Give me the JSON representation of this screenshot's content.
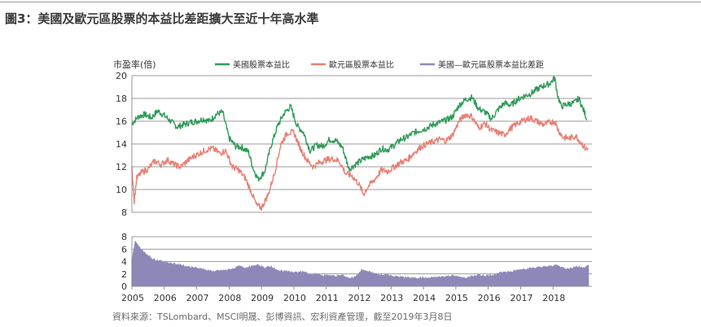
{
  "title": "圖3：美國及歐元區股票的本益比差距擴大至近十年高水準",
  "source": "資料來源：TSLombard、MSCI明晟、彭博資訊、宏利資產管理，截至2019年3月8日",
  "colors": {
    "us": "#2e9a57",
    "euro": "#e77f74",
    "spread": "#8d88b8",
    "grid": "#7a7a7a"
  },
  "chart_data": [
    {
      "type": "line",
      "ylabel": "市盈率(倍)",
      "ylim": [
        8,
        20
      ],
      "yticks": [
        "8",
        "10",
        "12",
        "14",
        "16",
        "18",
        "20"
      ],
      "x_ticks": [
        "2005",
        "2006",
        "2007",
        "2008",
        "2009",
        "2010",
        "2011",
        "2012",
        "2013",
        "2014",
        "2015",
        "2016",
        "2017",
        "2018"
      ],
      "legend_position": "top",
      "series": [
        {
          "name": "美國股票本益比",
          "color": "#2e9a57",
          "points": [
            [
              2005.0,
              15.8
            ],
            [
              2005.2,
              16.4
            ],
            [
              2005.4,
              16.6
            ],
            [
              2005.6,
              16.3
            ],
            [
              2005.8,
              16.9
            ],
            [
              2006.0,
              16.5
            ],
            [
              2006.2,
              16.0
            ],
            [
              2006.4,
              15.5
            ],
            [
              2006.6,
              15.7
            ],
            [
              2006.8,
              15.9
            ],
            [
              2007.0,
              16.0
            ],
            [
              2007.2,
              16.2
            ],
            [
              2007.4,
              16.0
            ],
            [
              2007.6,
              16.6
            ],
            [
              2007.8,
              16.8
            ],
            [
              2008.0,
              14.5
            ],
            [
              2008.2,
              13.8
            ],
            [
              2008.4,
              13.7
            ],
            [
              2008.6,
              13.3
            ],
            [
              2008.75,
              11.8
            ],
            [
              2008.9,
              10.9
            ],
            [
              2009.1,
              11.6
            ],
            [
              2009.3,
              13.9
            ],
            [
              2009.5,
              15.6
            ],
            [
              2009.7,
              16.7
            ],
            [
              2009.9,
              17.3
            ],
            [
              2010.1,
              15.6
            ],
            [
              2010.3,
              15.0
            ],
            [
              2010.5,
              13.4
            ],
            [
              2010.7,
              13.9
            ],
            [
              2010.9,
              13.8
            ],
            [
              2011.1,
              14.4
            ],
            [
              2011.3,
              14.3
            ],
            [
              2011.5,
              13.7
            ],
            [
              2011.7,
              11.8
            ],
            [
              2011.9,
              12.2
            ],
            [
              2012.1,
              12.6
            ],
            [
              2012.3,
              12.9
            ],
            [
              2012.5,
              13.0
            ],
            [
              2012.7,
              13.6
            ],
            [
              2012.9,
              13.5
            ],
            [
              2013.1,
              13.9
            ],
            [
              2013.3,
              14.4
            ],
            [
              2013.5,
              14.6
            ],
            [
              2013.7,
              15.0
            ],
            [
              2013.9,
              15.2
            ],
            [
              2014.1,
              15.4
            ],
            [
              2014.3,
              15.7
            ],
            [
              2014.5,
              15.9
            ],
            [
              2014.7,
              16.1
            ],
            [
              2014.9,
              16.4
            ],
            [
              2015.1,
              17.4
            ],
            [
              2015.3,
              17.9
            ],
            [
              2015.5,
              18.1
            ],
            [
              2015.7,
              17.1
            ],
            [
              2015.9,
              16.8
            ],
            [
              2016.1,
              16.2
            ],
            [
              2016.3,
              17.0
            ],
            [
              2016.5,
              17.6
            ],
            [
              2016.7,
              17.4
            ],
            [
              2016.9,
              17.9
            ],
            [
              2017.1,
              18.2
            ],
            [
              2017.3,
              18.4
            ],
            [
              2017.5,
              18.8
            ],
            [
              2017.7,
              19.1
            ],
            [
              2017.9,
              19.3
            ],
            [
              2018.05,
              19.8
            ],
            [
              2018.15,
              18.2
            ],
            [
              2018.25,
              17.3
            ],
            [
              2018.45,
              17.5
            ],
            [
              2018.65,
              17.6
            ],
            [
              2018.8,
              18.0
            ],
            [
              2018.95,
              16.9
            ],
            [
              2019.05,
              16.2
            ]
          ]
        },
        {
          "name": "歐元區股票本益比",
          "color": "#e77f74",
          "points": [
            [
              2005.0,
              12.0
            ],
            [
              2005.07,
              9.0
            ],
            [
              2005.15,
              11.0
            ],
            [
              2005.3,
              11.5
            ],
            [
              2005.5,
              11.8
            ],
            [
              2005.7,
              12.5
            ],
            [
              2005.9,
              12.2
            ],
            [
              2006.1,
              12.6
            ],
            [
              2006.3,
              12.2
            ],
            [
              2006.5,
              12.0
            ],
            [
              2006.7,
              12.5
            ],
            [
              2006.9,
              12.9
            ],
            [
              2007.1,
              13.2
            ],
            [
              2007.3,
              13.5
            ],
            [
              2007.5,
              13.6
            ],
            [
              2007.7,
              13.2
            ],
            [
              2007.9,
              13.4
            ],
            [
              2008.1,
              12.0
            ],
            [
              2008.3,
              11.7
            ],
            [
              2008.5,
              11.0
            ],
            [
              2008.7,
              9.7
            ],
            [
              2008.85,
              8.6
            ],
            [
              2009.0,
              8.4
            ],
            [
              2009.2,
              9.5
            ],
            [
              2009.4,
              11.4
            ],
            [
              2009.6,
              14.0
            ],
            [
              2009.8,
              15.0
            ],
            [
              2010.0,
              15.0
            ],
            [
              2010.2,
              13.6
            ],
            [
              2010.4,
              12.6
            ],
            [
              2010.6,
              12.0
            ],
            [
              2010.8,
              12.4
            ],
            [
              2011.0,
              12.6
            ],
            [
              2011.2,
              12.7
            ],
            [
              2011.4,
              12.5
            ],
            [
              2011.6,
              11.4
            ],
            [
              2011.8,
              11.2
            ],
            [
              2012.0,
              10.5
            ],
            [
              2012.15,
              9.6
            ],
            [
              2012.3,
              10.3
            ],
            [
              2012.5,
              10.9
            ],
            [
              2012.7,
              11.7
            ],
            [
              2012.9,
              11.6
            ],
            [
              2013.1,
              12.0
            ],
            [
              2013.3,
              12.4
            ],
            [
              2013.5,
              12.6
            ],
            [
              2013.7,
              13.2
            ],
            [
              2013.9,
              13.7
            ],
            [
              2014.1,
              14.0
            ],
            [
              2014.3,
              14.2
            ],
            [
              2014.5,
              14.4
            ],
            [
              2014.7,
              14.3
            ],
            [
              2014.9,
              14.8
            ],
            [
              2015.1,
              16.0
            ],
            [
              2015.3,
              16.6
            ],
            [
              2015.5,
              16.4
            ],
            [
              2015.7,
              15.4
            ],
            [
              2015.9,
              15.8
            ],
            [
              2016.1,
              15.2
            ],
            [
              2016.3,
              15.0
            ],
            [
              2016.5,
              14.8
            ],
            [
              2016.7,
              15.4
            ],
            [
              2016.9,
              15.8
            ],
            [
              2017.1,
              16.1
            ],
            [
              2017.3,
              16.3
            ],
            [
              2017.5,
              16.0
            ],
            [
              2017.7,
              15.7
            ],
            [
              2017.9,
              15.9
            ],
            [
              2018.05,
              16.0
            ],
            [
              2018.15,
              15.3
            ],
            [
              2018.3,
              14.6
            ],
            [
              2018.5,
              14.5
            ],
            [
              2018.7,
              14.7
            ],
            [
              2018.9,
              14.0
            ],
            [
              2019.0,
              13.6
            ],
            [
              2019.1,
              13.5
            ]
          ]
        }
      ]
    },
    {
      "type": "area",
      "ylim": [
        0,
        8
      ],
      "yticks": [
        "0",
        "2",
        "4",
        "6",
        "8"
      ],
      "series": [
        {
          "name": "美國—歐元區股票本益比差距",
          "color": "#8d88b8",
          "points": [
            [
              2005.0,
              4.2
            ],
            [
              2005.1,
              7.2
            ],
            [
              2005.2,
              6.5
            ],
            [
              2005.35,
              5.6
            ],
            [
              2005.5,
              5.0
            ],
            [
              2005.65,
              4.4
            ],
            [
              2005.8,
              4.2
            ],
            [
              2005.95,
              4.0
            ],
            [
              2006.1,
              3.8
            ],
            [
              2006.3,
              3.6
            ],
            [
              2006.5,
              3.5
            ],
            [
              2006.7,
              3.2
            ],
            [
              2006.9,
              3.0
            ],
            [
              2007.1,
              2.9
            ],
            [
              2007.3,
              2.6
            ],
            [
              2007.5,
              2.4
            ],
            [
              2007.7,
              2.5
            ],
            [
              2007.9,
              2.6
            ],
            [
              2008.1,
              2.8
            ],
            [
              2008.3,
              3.2
            ],
            [
              2008.5,
              3.0
            ],
            [
              2008.7,
              3.2
            ],
            [
              2008.9,
              3.4
            ],
            [
              2009.1,
              3.0
            ],
            [
              2009.3,
              3.2
            ],
            [
              2009.5,
              2.5
            ],
            [
              2009.7,
              2.5
            ],
            [
              2009.9,
              2.3
            ],
            [
              2010.1,
              2.2
            ],
            [
              2010.3,
              2.4
            ],
            [
              2010.5,
              1.8
            ],
            [
              2010.7,
              2.0
            ],
            [
              2010.9,
              1.7
            ],
            [
              2011.1,
              1.8
            ],
            [
              2011.3,
              1.6
            ],
            [
              2011.5,
              1.8
            ],
            [
              2011.7,
              1.3
            ],
            [
              2011.9,
              1.5
            ],
            [
              2012.1,
              2.6
            ],
            [
              2012.3,
              2.4
            ],
            [
              2012.5,
              2.0
            ],
            [
              2012.7,
              1.9
            ],
            [
              2012.9,
              1.8
            ],
            [
              2013.1,
              1.6
            ],
            [
              2013.3,
              1.5
            ],
            [
              2013.5,
              1.4
            ],
            [
              2013.7,
              1.3
            ],
            [
              2013.9,
              1.4
            ],
            [
              2014.1,
              1.3
            ],
            [
              2014.3,
              1.4
            ],
            [
              2014.5,
              1.5
            ],
            [
              2014.7,
              1.6
            ],
            [
              2014.9,
              1.7
            ],
            [
              2015.1,
              1.5
            ],
            [
              2015.3,
              1.3
            ],
            [
              2015.5,
              1.6
            ],
            [
              2015.7,
              1.8
            ],
            [
              2015.9,
              1.7
            ],
            [
              2016.1,
              1.8
            ],
            [
              2016.3,
              2.0
            ],
            [
              2016.5,
              2.4
            ],
            [
              2016.7,
              2.3
            ],
            [
              2016.9,
              2.6
            ],
            [
              2017.1,
              2.8
            ],
            [
              2017.3,
              2.9
            ],
            [
              2017.5,
              3.0
            ],
            [
              2017.7,
              3.1
            ],
            [
              2017.9,
              3.2
            ],
            [
              2018.1,
              3.4
            ],
            [
              2018.3,
              3.0
            ],
            [
              2018.5,
              2.8
            ],
            [
              2018.7,
              3.2
            ],
            [
              2018.9,
              3.0
            ],
            [
              2019.1,
              3.3
            ]
          ]
        }
      ]
    }
  ]
}
